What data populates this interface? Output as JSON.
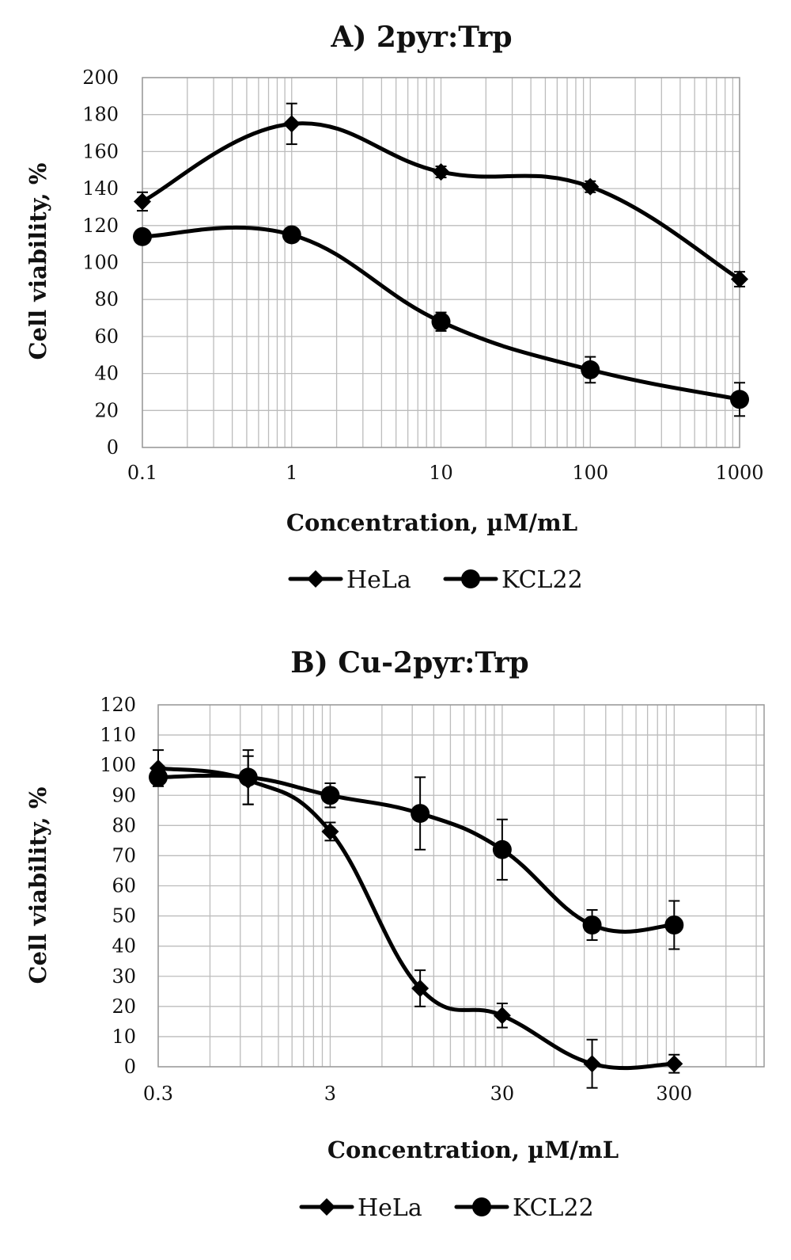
{
  "chart_data": [
    {
      "type": "line",
      "title": "A) 2pyr:Trp",
      "xlabel": "Concentration, µM/mL",
      "ylabel": "Cell viability, %",
      "xscale": "log",
      "xlim": [
        0.1,
        1000
      ],
      "ylim": [
        0,
        200
      ],
      "xticks": [
        "0.1",
        "1",
        "10",
        "100",
        "1000"
      ],
      "yticks": [
        "0",
        "20",
        "40",
        "60",
        "80",
        "100",
        "120",
        "140",
        "160",
        "180",
        "200"
      ],
      "grid": true,
      "legend_position": "bottom",
      "x": [
        0.1,
        1,
        10,
        100,
        1000
      ],
      "series": [
        {
          "name": "HeLa",
          "marker": "diamond",
          "values": [
            133,
            175,
            149,
            141,
            91
          ],
          "errors": [
            5,
            11,
            3,
            3,
            4
          ]
        },
        {
          "name": "KCL22",
          "marker": "circle",
          "values": [
            114,
            115,
            68,
            42,
            26
          ],
          "errors": [
            3,
            3,
            5,
            7,
            9
          ]
        }
      ]
    },
    {
      "type": "line",
      "title": "B) Cu-2pyr:Trp",
      "xlabel": "Concentration, µM/mL",
      "ylabel": "Cell viability, %",
      "xscale": "log",
      "xlim": [
        0.3,
        1000
      ],
      "ylim": [
        0,
        120
      ],
      "xticks": [
        "0.3",
        "3",
        "30",
        "300"
      ],
      "yticks": [
        "0",
        "10",
        "20",
        "30",
        "40",
        "50",
        "60",
        "70",
        "80",
        "90",
        "100",
        "110",
        "120"
      ],
      "grid": true,
      "legend_position": "bottom",
      "x": [
        0.3,
        1,
        3,
        10,
        30,
        100,
        300
      ],
      "series": [
        {
          "name": "HeLa",
          "marker": "diamond",
          "values": [
            99,
            95,
            78,
            26,
            17,
            1,
            1
          ],
          "errors": [
            6,
            8,
            3,
            6,
            4,
            8,
            3
          ]
        },
        {
          "name": "KCL22",
          "marker": "circle",
          "values": [
            96,
            96,
            90,
            84,
            72,
            47,
            47
          ],
          "errors": [
            2,
            9,
            4,
            12,
            10,
            5,
            8
          ]
        }
      ]
    }
  ]
}
